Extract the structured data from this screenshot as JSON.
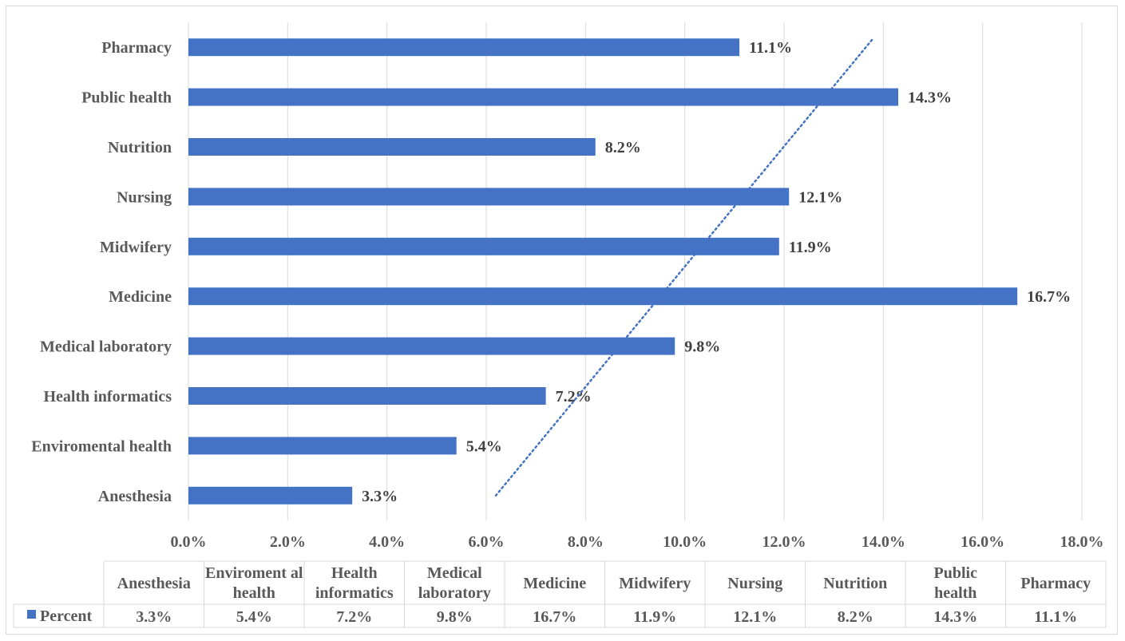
{
  "chart_data": {
    "type": "bar",
    "orientation": "horizontal",
    "categories": [
      "Anesthesia",
      "Enviromental health",
      "Health informatics",
      "Medical laboratory",
      "Medicine",
      "Midwifery",
      "Nursing",
      "Nutrition",
      "Public health",
      "Pharmacy"
    ],
    "series": [
      {
        "name": "Percent",
        "values": [
          3.3,
          5.4,
          7.2,
          9.8,
          16.7,
          11.9,
          12.1,
          8.2,
          14.3,
          11.1
        ],
        "color": "#4472c4"
      }
    ],
    "data_labels": [
      "3.3%",
      "5.4%",
      "7.2%",
      "9.8%",
      "16.7%",
      "11.9%",
      "12.1%",
      "8.2%",
      "14.3%",
      "11.1%"
    ],
    "xlim": [
      0,
      18
    ],
    "xticks": [
      "0.0%",
      "2.0%",
      "4.0%",
      "6.0%",
      "8.0%",
      "10.0%",
      "12.0%",
      "14.0%",
      "16.0%",
      "18.0%"
    ],
    "grid": true,
    "trendline": {
      "type": "linear",
      "style": "dotted",
      "color": "#4472c4"
    },
    "data_table": {
      "headers": [
        "Anesthesia",
        "Enviroment al health",
        "Health informatics",
        "Medical laboratory",
        "Medicine",
        "Midwifery",
        "Nursing",
        "Nutrition",
        "Public health",
        "Pharmacy"
      ],
      "row_label": "Percent",
      "values": [
        "3.3%",
        "5.4%",
        "7.2%",
        "9.8%",
        "16.7%",
        "11.9%",
        "12.1%",
        "8.2%",
        "14.3%",
        "11.1%"
      ]
    },
    "colors": {
      "bar": "#4472c4",
      "grid": "#d9d9d9",
      "text": "#595959"
    }
  }
}
